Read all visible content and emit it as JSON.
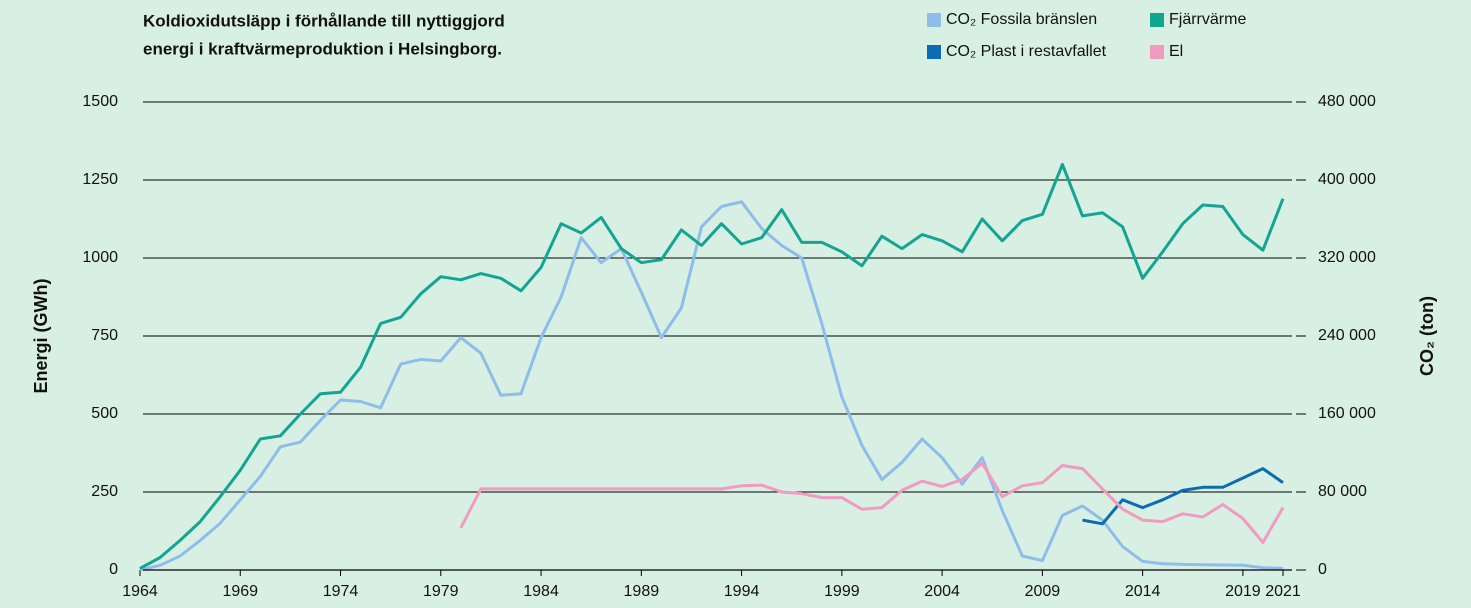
{
  "chart_data": {
    "type": "line",
    "title": [
      "Koldioxidutsläpp i förhållande till nyttiggjord",
      "energi i kraftvärmeproduktion i Helsingborg."
    ],
    "y_label": "Energi (GWh)",
    "y2_label": "CO₂ (ton)",
    "x": [
      1964,
      1965,
      1966,
      1967,
      1968,
      1969,
      1970,
      1971,
      1972,
      1973,
      1974,
      1975,
      1976,
      1977,
      1978,
      1979,
      1980,
      1981,
      1982,
      1983,
      1984,
      1985,
      1986,
      1987,
      1988,
      1989,
      1990,
      1991,
      1992,
      1993,
      1994,
      1995,
      1996,
      1997,
      1998,
      1999,
      2000,
      2001,
      2002,
      2003,
      2004,
      2005,
      2006,
      2007,
      2008,
      2009,
      2010,
      2011,
      2012,
      2013,
      2014,
      2015,
      2016,
      2017,
      2018,
      2019,
      2020,
      2021
    ],
    "xlim": [
      1964,
      2021
    ],
    "xticks": [
      1964,
      1969,
      1974,
      1979,
      1984,
      1989,
      1994,
      1999,
      2004,
      2009,
      2014,
      2019,
      2021
    ],
    "ylim": [
      0,
      1500
    ],
    "yticks": [
      0,
      250,
      500,
      750,
      1000,
      1250,
      1500
    ],
    "y2lim": [
      0,
      480000
    ],
    "y2ticks": [
      {
        "value": 0,
        "label": "0"
      },
      {
        "value": 80000,
        "label": "80 000"
      },
      {
        "value": 160000,
        "label": "160 000"
      },
      {
        "value": 240000,
        "label": "240 000"
      },
      {
        "value": 320000,
        "label": "320 000"
      },
      {
        "value": 400000,
        "label": "400 000"
      },
      {
        "value": 480000,
        "label": "480 000"
      }
    ],
    "grid": true,
    "legend": "top-right",
    "series": [
      {
        "name": "CO₂ Fossila bränslen",
        "color": "#8fbde9",
        "axis": "y2",
        "values": [
          0,
          4800,
          14400,
          30400,
          48000,
          72000,
          96000,
          126400,
          131200,
          153600,
          174400,
          172800,
          166400,
          211200,
          216000,
          214400,
          238400,
          222400,
          179200,
          180800,
          238400,
          280000,
          340800,
          315200,
          329600,
          284800,
          238400,
          268800,
          352000,
          372800,
          377600,
          350400,
          332800,
          320000,
          252800,
          177600,
          128000,
          92800,
          110400,
          134400,
          115200,
          88000,
          115200,
          60800,
          14400,
          9600,
          56000,
          65600,
          51200,
          24000,
          8960,
          6400,
          5760,
          5440,
          5120,
          4800,
          2240,
          1600
        ]
      },
      {
        "name": "CO₂ Plast i restavfallet",
        "color": "#0b6cb4",
        "axis": "y2",
        "values": [
          null,
          null,
          null,
          null,
          null,
          null,
          null,
          null,
          null,
          null,
          null,
          null,
          null,
          null,
          null,
          null,
          null,
          null,
          null,
          null,
          null,
          null,
          null,
          null,
          null,
          null,
          null,
          null,
          null,
          null,
          null,
          null,
          null,
          null,
          null,
          null,
          null,
          null,
          null,
          null,
          null,
          null,
          null,
          null,
          null,
          null,
          null,
          51200,
          47360,
          72000,
          64000,
          72000,
          81600,
          84800,
          84800,
          94400,
          104000,
          89600
        ]
      },
      {
        "name": "Fjärrvärme",
        "color": "#14a592",
        "values": [
          5,
          40,
          95,
          155,
          235,
          320,
          420,
          430,
          500,
          565,
          570,
          650,
          790,
          810,
          885,
          940,
          930,
          950,
          935,
          895,
          970,
          1110,
          1080,
          1130,
          1030,
          985,
          995,
          1090,
          1040,
          1110,
          1045,
          1065,
          1155,
          1050,
          1050,
          1020,
          975,
          1070,
          1030,
          1075,
          1055,
          1020,
          1125,
          1055,
          1120,
          1140,
          1300,
          1135,
          1145,
          1100,
          935,
          1020,
          1110,
          1170,
          1165,
          1075,
          1025,
          1190
        ]
      },
      {
        "name": "El",
        "color": "#f19bc1",
        "values": [
          null,
          null,
          null,
          null,
          null,
          null,
          null,
          null,
          null,
          null,
          null,
          null,
          null,
          null,
          null,
          null,
          135,
          260,
          260,
          260,
          260,
          260,
          260,
          260,
          260,
          260,
          260,
          260,
          260,
          260,
          270,
          272,
          250,
          245,
          232,
          232,
          195,
          200,
          255,
          285,
          268,
          290,
          342,
          235,
          270,
          280,
          335,
          325,
          260,
          195,
          160,
          155,
          180,
          170,
          210,
          165,
          88,
          200
        ]
      }
    ]
  }
}
